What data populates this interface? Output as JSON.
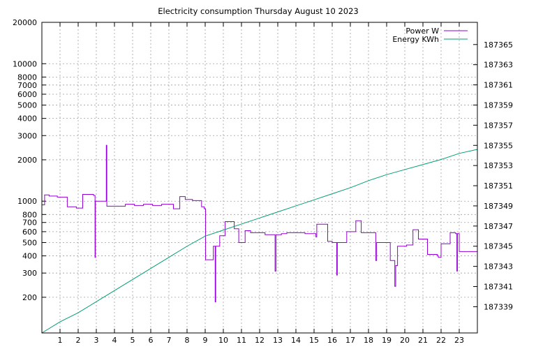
{
  "chart_data": {
    "type": "line",
    "title": "Electricity consumption Thursday August 10 2023",
    "xlabel": "",
    "ylabel": "",
    "y2label": "",
    "grid": true,
    "legend_position": "top-right",
    "x_range": [
      0,
      24
    ],
    "x_ticks": [
      1,
      2,
      3,
      4,
      5,
      6,
      7,
      8,
      9,
      10,
      11,
      12,
      13,
      14,
      15,
      16,
      17,
      18,
      19,
      20,
      21,
      22,
      23
    ],
    "y_scale": "log",
    "y_range": [
      110,
      20000
    ],
    "y_ticks": [
      200,
      300,
      400,
      500,
      600,
      700,
      800,
      1000,
      2000,
      3000,
      4000,
      5000,
      6000,
      7000,
      8000,
      10000,
      20000
    ],
    "y2_range": [
      187336.4,
      187367.2
    ],
    "y2_ticks": [
      187339,
      187341,
      187343,
      187345,
      187347,
      187349,
      187351,
      187353,
      187355,
      187357,
      187359,
      187361,
      187363,
      187365
    ],
    "series": [
      {
        "name": "Power W",
        "axis": "y",
        "color": "#9400d3",
        "style": "steps",
        "points": [
          [
            0,
            940
          ],
          [
            0.15,
            1110
          ],
          [
            0.4,
            1090
          ],
          [
            0.85,
            1070
          ],
          [
            1.4,
            910
          ],
          [
            1.9,
            890
          ],
          [
            2.25,
            1120
          ],
          [
            2.85,
            1100
          ],
          [
            2.93,
            390
          ],
          [
            2.95,
            1000
          ],
          [
            3.5,
            1000
          ],
          [
            3.55,
            2550
          ],
          [
            3.58,
            920
          ],
          [
            4.6,
            950
          ],
          [
            5.1,
            930
          ],
          [
            5.6,
            950
          ],
          [
            6.1,
            930
          ],
          [
            6.6,
            950
          ],
          [
            7.25,
            880
          ],
          [
            7.6,
            1080
          ],
          [
            7.9,
            1030
          ],
          [
            8.3,
            1010
          ],
          [
            8.8,
            910
          ],
          [
            8.95,
            880
          ],
          [
            9.02,
            375
          ],
          [
            9.45,
            470
          ],
          [
            9.55,
            185
          ],
          [
            9.58,
            470
          ],
          [
            9.8,
            560
          ],
          [
            10.1,
            710
          ],
          [
            10.6,
            630
          ],
          [
            10.85,
            500
          ],
          [
            11.2,
            610
          ],
          [
            11.5,
            590
          ],
          [
            12.3,
            570
          ],
          [
            12.85,
            310
          ],
          [
            12.9,
            570
          ],
          [
            13.2,
            580
          ],
          [
            13.5,
            590
          ],
          [
            14.5,
            580
          ],
          [
            15.1,
            550
          ],
          [
            15.15,
            680
          ],
          [
            15.75,
            510
          ],
          [
            16.0,
            500
          ],
          [
            16.25,
            290
          ],
          [
            16.28,
            500
          ],
          [
            16.8,
            600
          ],
          [
            17.3,
            720
          ],
          [
            17.6,
            590
          ],
          [
            18.4,
            370
          ],
          [
            18.45,
            500
          ],
          [
            19.2,
            370
          ],
          [
            19.45,
            240
          ],
          [
            19.5,
            340
          ],
          [
            19.6,
            470
          ],
          [
            20.1,
            480
          ],
          [
            20.45,
            620
          ],
          [
            20.75,
            530
          ],
          [
            21.25,
            410
          ],
          [
            21.8,
            400
          ],
          [
            21.85,
            390
          ],
          [
            22.0,
            490
          ],
          [
            22.5,
            590
          ],
          [
            22.8,
            580
          ],
          [
            22.87,
            310
          ],
          [
            22.9,
            580
          ],
          [
            23.0,
            430
          ],
          [
            23.9,
            430
          ],
          [
            24,
            470
          ]
        ]
      },
      {
        "name": "Energy KWh",
        "axis": "y2",
        "color": "#009e73",
        "style": "line",
        "points": [
          [
            0,
            187336.4
          ],
          [
            1,
            187337.5
          ],
          [
            2,
            187338.4
          ],
          [
            3,
            187339.5
          ],
          [
            4,
            187340.6
          ],
          [
            5,
            187341.7
          ],
          [
            6,
            187342.8
          ],
          [
            7,
            187343.9
          ],
          [
            8,
            187345.0
          ],
          [
            9,
            187346.0
          ],
          [
            10,
            187346.6
          ],
          [
            11,
            187347.2
          ],
          [
            12,
            187347.8
          ],
          [
            13,
            187348.4
          ],
          [
            14,
            187349.0
          ],
          [
            15,
            187349.6
          ],
          [
            16,
            187350.2
          ],
          [
            17,
            187350.8
          ],
          [
            18,
            187351.5
          ],
          [
            19,
            187352.1
          ],
          [
            20,
            187352.6
          ],
          [
            21,
            187353.1
          ],
          [
            22,
            187353.6
          ],
          [
            23,
            187354.2
          ],
          [
            24,
            187354.6
          ]
        ]
      }
    ]
  }
}
